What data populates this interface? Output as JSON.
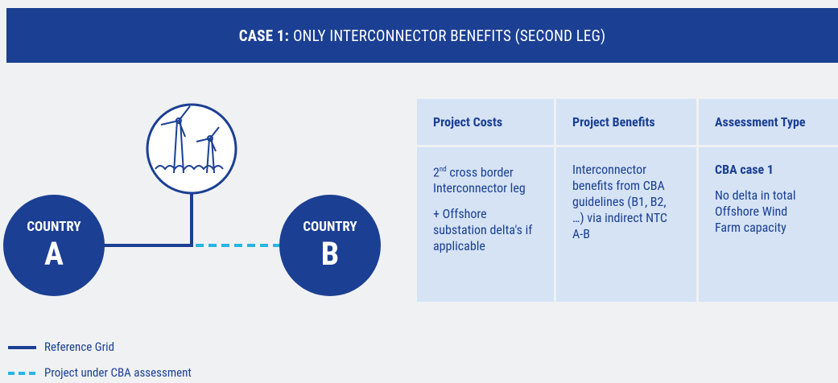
{
  "header": {
    "title_bold": "CASE 1:",
    "title_rest": "ONLY INTERCONNECTOR BENEFITS (SECOND LEG)"
  },
  "nodes": [
    {
      "label": "COUNTRY",
      "letter": "A"
    },
    {
      "label": "COUNTRY",
      "letter": "B"
    }
  ],
  "table": {
    "headers": [
      "Project Costs",
      "Project Benefits",
      "Assessment Type"
    ],
    "costs": {
      "ordinal": "2",
      "suffix": "nd",
      "text": " cross border Interconnector leg",
      "extra": "+ Offshore substation delta's if applicable"
    },
    "benefits": "Interconnector benefits from CBA guidelines (B1, B2, …) via indirect NTC A-B",
    "assessment": {
      "title": "CBA case 1",
      "text": "No delta in total Offshore Wind Farm capacity"
    }
  },
  "legend": [
    "Reference Grid",
    "Project under CBA assessment"
  ]
}
